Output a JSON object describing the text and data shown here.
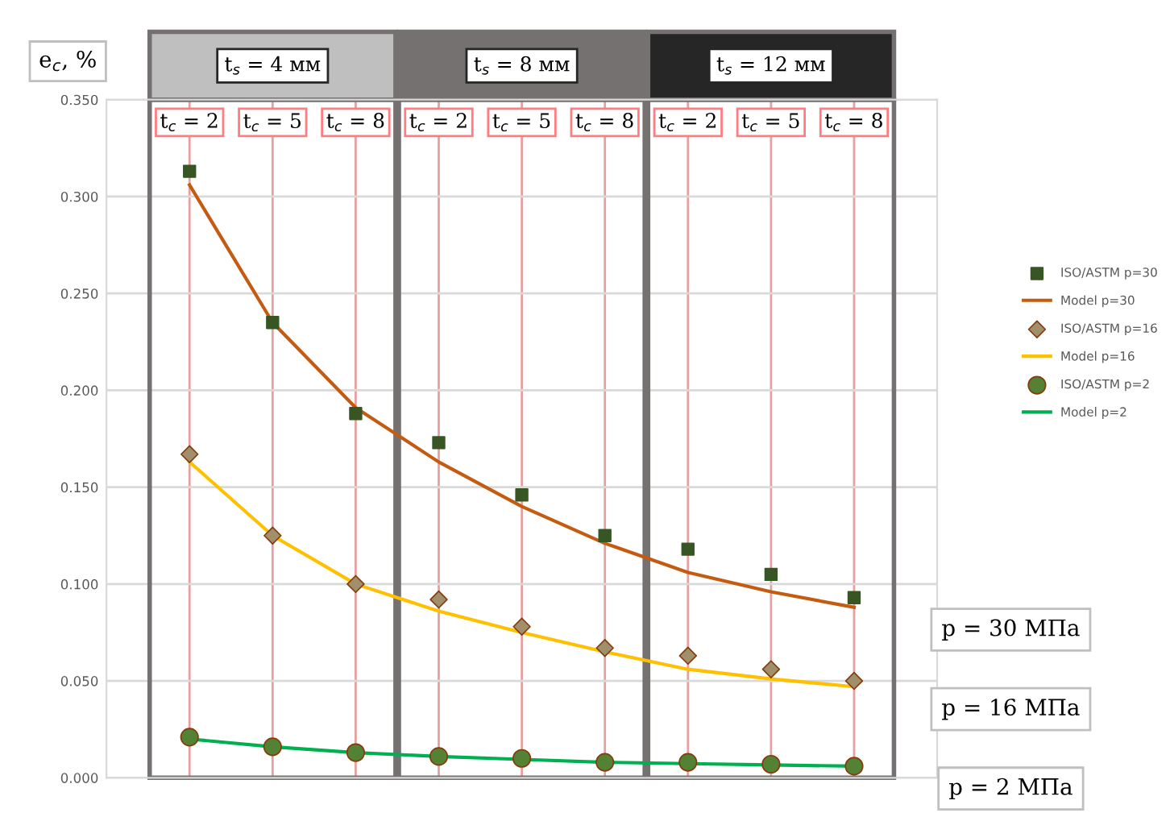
{
  "chart_data": {
    "type": "line",
    "ylabel": "e$_{c}$, %",
    "categories": [
      "t$_{c}$ = 2",
      "t$_{c}$ = 5",
      "t$_{c}$ = 8",
      "t$_{c}$ = 2",
      "t$_{c}$ = 5",
      "t$_{c}$ = 8",
      "t$_{c}$ = 2",
      "t$_{c}$ = 5",
      "t$_{c}$ = 8"
    ],
    "ylim": [
      0,
      0.35
    ],
    "yticks": [
      {
        "value": 0,
        "label": "0.000"
      },
      {
        "value": 0.05,
        "label": "0.050"
      },
      {
        "value": 0.1,
        "label": "0.100"
      },
      {
        "value": 0.15,
        "label": "0.150"
      },
      {
        "value": 0.2,
        "label": "0.200"
      },
      {
        "value": 0.25,
        "label": "0.250"
      },
      {
        "value": 0.3,
        "label": "0.300"
      },
      {
        "value": 0.35,
        "label": "0.350"
      }
    ],
    "grid": true,
    "legend": "right",
    "series": [
      {
        "name": "ISO/ASTM p=30",
        "type": "scatter",
        "marker": "square",
        "color": "#375623",
        "values": [
          0.313,
          0.235,
          0.188,
          0.173,
          0.146,
          0.125,
          0.118,
          0.105,
          0.093
        ]
      },
      {
        "name": "Model p=30",
        "color": "#c55a11",
        "values": [
          0.306,
          0.235,
          0.191,
          0.163,
          0.14,
          0.121,
          0.106,
          0.096,
          0.088
        ]
      },
      {
        "name": "ISO/ASTM p=16",
        "type": "scatter",
        "marker": "diamond",
        "color": "#a08f6a",
        "values": [
          0.167,
          0.125,
          0.1,
          0.092,
          0.078,
          0.067,
          0.063,
          0.056,
          0.05
        ]
      },
      {
        "name": "Model p=16",
        "color": "#ffc000",
        "values": [
          0.163,
          0.125,
          0.1,
          0.086,
          0.075,
          0.065,
          0.056,
          0.051,
          0.047
        ]
      },
      {
        "name": "ISO/ASTM p=2",
        "type": "scatter",
        "marker": "circle",
        "color": "#548235",
        "values": [
          0.021,
          0.016,
          0.013,
          0.011,
          0.01,
          0.008,
          0.008,
          0.007,
          0.006
        ]
      },
      {
        "name": "Model p=2",
        "color": "#00b050",
        "values": [
          0.02,
          0.016,
          0.013,
          0.011,
          0.0095,
          0.008,
          0.0073,
          0.0066,
          0.006
        ]
      }
    ],
    "annotations": [
      "t$_{s}$ = 4 мм",
      "t$_{s}$ = 8 мм",
      "t$_{s}$ = 12 мм",
      "p = 30 МПа",
      "p = 16 МПа",
      "p = 2 МПа"
    ]
  }
}
